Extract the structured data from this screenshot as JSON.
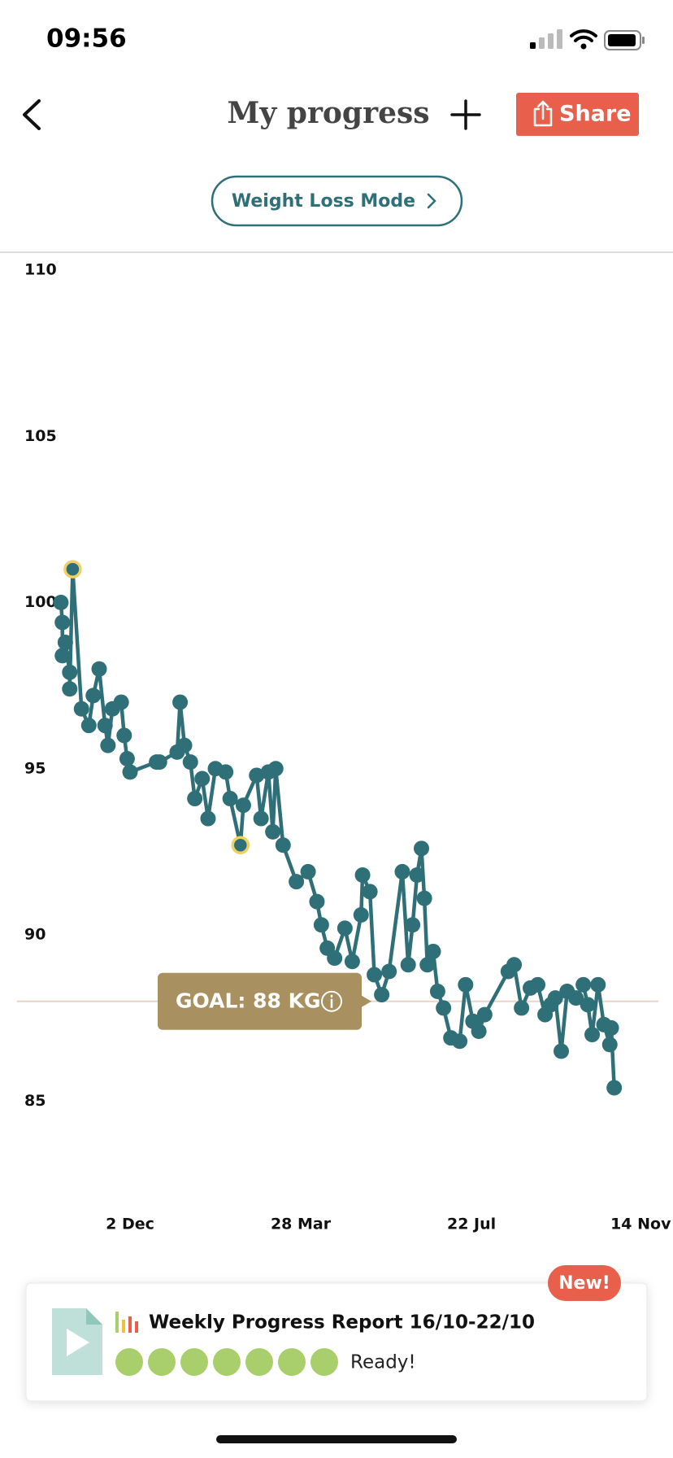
{
  "status_bar": {
    "time": "09:56"
  },
  "header": {
    "title": "My progress",
    "share": "Share"
  },
  "mode_button": "Weight Loss Mode",
  "chart_data": {
    "type": "line",
    "x": [
      -47,
      -46,
      -46,
      -44,
      -41,
      -41,
      -39,
      -33,
      -28,
      -25,
      -21,
      -17,
      -15,
      -12,
      -6,
      -4,
      -2,
      0,
      18,
      20,
      32,
      34,
      37,
      41,
      44,
      49,
      53,
      58,
      65,
      68,
      75,
      77,
      86,
      89,
      94,
      97,
      99,
      104,
      113,
      121,
      127,
      130,
      134,
      139,
      146,
      151,
      157,
      158,
      163,
      166,
      171,
      176,
      185,
      189,
      192,
      195,
      198,
      200,
      202,
      206,
      209,
      213,
      218,
      224,
      228,
      233,
      237,
      241,
      257,
      261,
      266,
      272,
      277,
      282,
      286,
      289,
      293,
      297,
      303,
      308,
      311,
      314,
      318,
      322,
      326,
      327,
      329
    ],
    "series": [
      {
        "name": "Weight",
        "color": "#2f6f78",
        "values": [
          100.0,
          99.4,
          98.4,
          98.8,
          97.9,
          97.4,
          101.0,
          96.8,
          96.3,
          97.2,
          98.0,
          96.3,
          95.7,
          96.8,
          97.0,
          96.0,
          95.3,
          94.9,
          95.2,
          95.2,
          95.5,
          97.0,
          95.7,
          95.2,
          94.1,
          94.7,
          93.5,
          95.0,
          94.9,
          94.1,
          92.7,
          93.9,
          94.8,
          93.5,
          94.9,
          93.1,
          95.0,
          92.7,
          91.6,
          91.9,
          91.0,
          90.3,
          89.6,
          89.3,
          90.2,
          89.2,
          90.6,
          91.8,
          91.3,
          88.8,
          88.2,
          88.9,
          91.9,
          89.1,
          90.3,
          91.8,
          92.6,
          91.1,
          89.1,
          89.5,
          88.3,
          87.8,
          86.9,
          86.8,
          88.5,
          87.4,
          87.1,
          87.6,
          88.9,
          89.1,
          87.8,
          88.4,
          88.5,
          87.6,
          87.9,
          88.1,
          86.5,
          88.3,
          88.1,
          88.5,
          87.9,
          87.0,
          88.5,
          87.3,
          86.7,
          87.2,
          85.4
        ]
      }
    ],
    "highlighted_points": [
      6,
      30
    ],
    "highlight_color": "#f0d060",
    "xlim": [
      -77,
      359
    ],
    "xticks": [
      {
        "value": 0,
        "label": "2 Dec"
      },
      {
        "value": 116,
        "label": "28 Mar"
      },
      {
        "value": 232,
        "label": "22 Jul"
      },
      {
        "value": 347,
        "label": "14 Nov"
      }
    ],
    "ylim": [
      83,
      110
    ],
    "yticks": [
      85,
      90,
      95,
      100,
      105,
      110
    ],
    "goal": {
      "value": 88,
      "label": "GOAL: 88 KG",
      "color": "#e8d4c8"
    }
  },
  "report_card": {
    "badge": "New!",
    "title": "Weekly Progress Report 16/10-22/10",
    "status": "Ready!"
  }
}
